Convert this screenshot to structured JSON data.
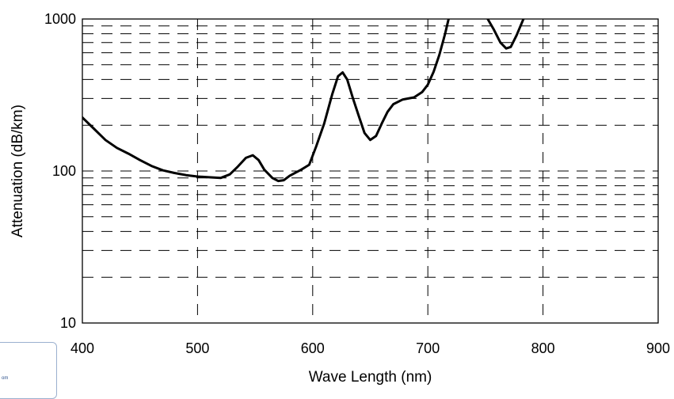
{
  "chart_data": {
    "type": "line",
    "title": "",
    "xlabel": "Wave Length (nm)",
    "ylabel": "Attenuation (dB/km)",
    "xlim": [
      400,
      900
    ],
    "ylim": [
      10,
      1000
    ],
    "yscale": "log",
    "x_ticks": [
      "400",
      "500",
      "600",
      "700",
      "800",
      "900"
    ],
    "y_ticks": [
      "10",
      "100",
      "1000"
    ],
    "grid": "dashed",
    "series": [
      {
        "segments": [
          [
            [
              400,
              225
            ],
            [
              410,
              190
            ],
            [
              420,
              160
            ],
            [
              430,
              142
            ],
            [
              440,
              130
            ],
            [
              450,
              118
            ],
            [
              460,
              108
            ],
            [
              470,
              101
            ],
            [
              480,
              97
            ],
            [
              490,
              94
            ],
            [
              500,
              92
            ],
            [
              510,
              91
            ],
            [
              520,
              90
            ],
            [
              528,
              95
            ],
            [
              535,
              107
            ],
            [
              542,
              122
            ],
            [
              548,
              127
            ],
            [
              553,
              118
            ],
            [
              558,
              102
            ],
            [
              565,
              90
            ],
            [
              570,
              86
            ],
            [
              575,
              87
            ],
            [
              580,
              93
            ],
            [
              590,
              102
            ],
            [
              597,
              110
            ],
            [
              603,
              145
            ],
            [
              610,
              205
            ],
            [
              617,
              320
            ],
            [
              622,
              420
            ],
            [
              626,
              445
            ],
            [
              630,
              400
            ],
            [
              635,
              300
            ],
            [
              640,
              230
            ],
            [
              645,
              178
            ],
            [
              650,
              160
            ],
            [
              655,
              170
            ],
            [
              660,
              205
            ],
            [
              665,
              245
            ],
            [
              670,
              275
            ],
            [
              678,
              295
            ],
            [
              688,
              305
            ],
            [
              695,
              330
            ],
            [
              700,
              370
            ],
            [
              705,
              450
            ],
            [
              710,
              580
            ],
            [
              715,
              800
            ],
            [
              718,
              1000
            ]
          ],
          [
            [
              752,
              1000
            ],
            [
              757,
              860
            ],
            [
              763,
              700
            ],
            [
              768,
              640
            ],
            [
              772,
              655
            ],
            [
              777,
              780
            ],
            [
              783,
              1000
            ]
          ]
        ]
      }
    ]
  },
  "footer_fragment": {
    "text": "om"
  }
}
